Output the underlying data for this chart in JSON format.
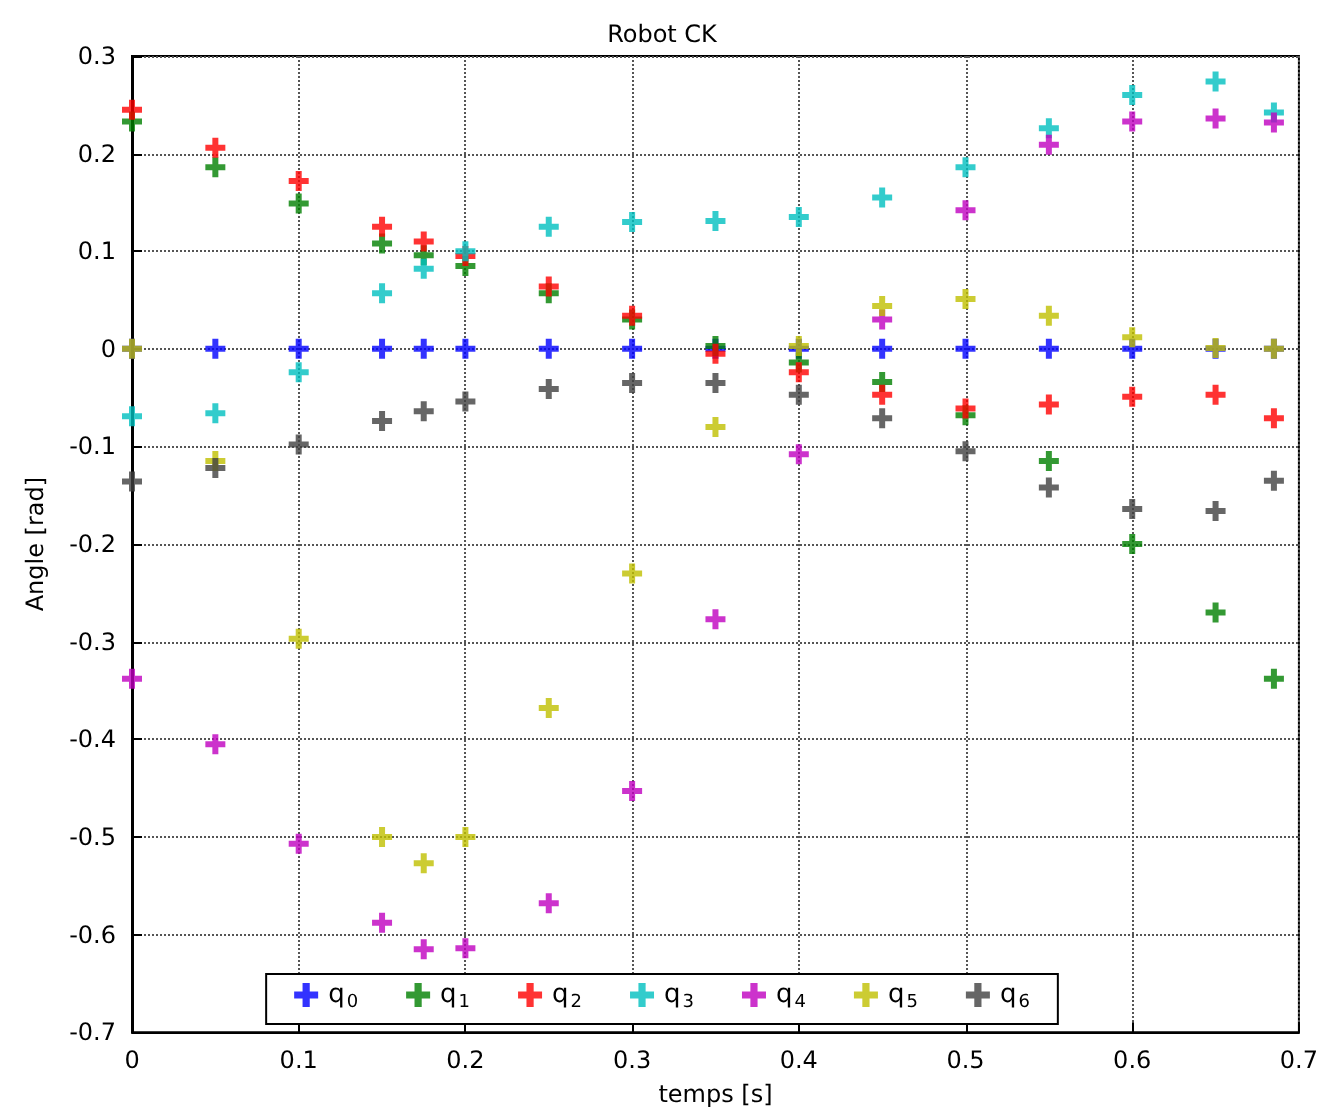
{
  "chart_data": {
    "type": "scatter",
    "title": "Robot CK",
    "xlabel": "temps [s]",
    "ylabel": "Angle [rad]",
    "x": [
      0,
      0.05,
      0.1,
      0.15,
      0.175,
      0.2,
      0.25,
      0.3,
      0.35,
      0.4,
      0.45,
      0.5,
      0.55,
      0.6,
      0.65,
      0.685
    ],
    "series": [
      {
        "name": "q$_{0}$",
        "color": "#0000ff",
        "values": [
          0,
          0,
          0,
          0,
          0,
          0,
          0,
          0,
          0,
          0,
          0,
          0,
          0,
          0,
          0,
          0
        ]
      },
      {
        "name": "q$_{1}$",
        "color": "#008000",
        "values": [
          0.233,
          0.186,
          0.149,
          0.108,
          0.096,
          0.085,
          0.057,
          0.03,
          0.003,
          -0.014,
          -0.034,
          -0.068,
          -0.115,
          -0.2,
          -0.27,
          -0.338
        ]
      },
      {
        "name": "q$_{2}$",
        "color": "#ff0000",
        "values": [
          0.245,
          0.206,
          0.172,
          0.125,
          0.11,
          0.095,
          0.064,
          0.034,
          -0.005,
          -0.024,
          -0.047,
          -0.061,
          -0.057,
          -0.049,
          -0.047,
          -0.071
        ]
      },
      {
        "name": "q$_{3}$",
        "color": "#00bfbf",
        "values": [
          -0.069,
          -0.066,
          -0.024,
          0.057,
          0.082,
          0.1,
          0.125,
          0.13,
          0.131,
          0.135,
          0.155,
          0.186,
          0.226,
          0.26,
          0.274,
          0.242
        ]
      },
      {
        "name": "q$_{4}$",
        "color": "#bf00bf",
        "values": [
          -0.338,
          -0.405,
          -0.507,
          -0.588,
          -0.615,
          -0.614,
          -0.568,
          -0.453,
          -0.277,
          -0.108,
          0.03,
          0.142,
          0.209,
          0.233,
          0.236,
          0.232
        ]
      },
      {
        "name": "q$_{5}$",
        "color": "#bfbf00",
        "values": [
          0,
          -0.115,
          -0.297,
          -0.5,
          -0.527,
          -0.5,
          -0.368,
          -0.23,
          -0.08,
          0.003,
          0.044,
          0.051,
          0.034,
          0.012,
          0.001,
          0
        ]
      },
      {
        "name": "q$_{6}$",
        "color": "#404040",
        "values": [
          -0.136,
          -0.122,
          -0.098,
          -0.074,
          -0.064,
          -0.054,
          -0.041,
          -0.035,
          -0.035,
          -0.047,
          -0.071,
          -0.105,
          -0.142,
          -0.164,
          -0.166,
          -0.135
        ]
      }
    ],
    "xlim": [
      0,
      0.7
    ],
    "xticks": [
      0,
      0.1,
      0.2,
      0.3,
      0.4,
      0.5,
      0.6,
      0.7
    ],
    "ylim": [
      -0.7,
      0.3
    ],
    "yticks": [
      -0.7,
      -0.6,
      -0.5,
      -0.4,
      -0.3,
      -0.2,
      -0.1,
      0,
      0.1,
      0.2,
      0.3
    ],
    "grid": true,
    "legend": "bottom",
    "marker": "cross"
  }
}
